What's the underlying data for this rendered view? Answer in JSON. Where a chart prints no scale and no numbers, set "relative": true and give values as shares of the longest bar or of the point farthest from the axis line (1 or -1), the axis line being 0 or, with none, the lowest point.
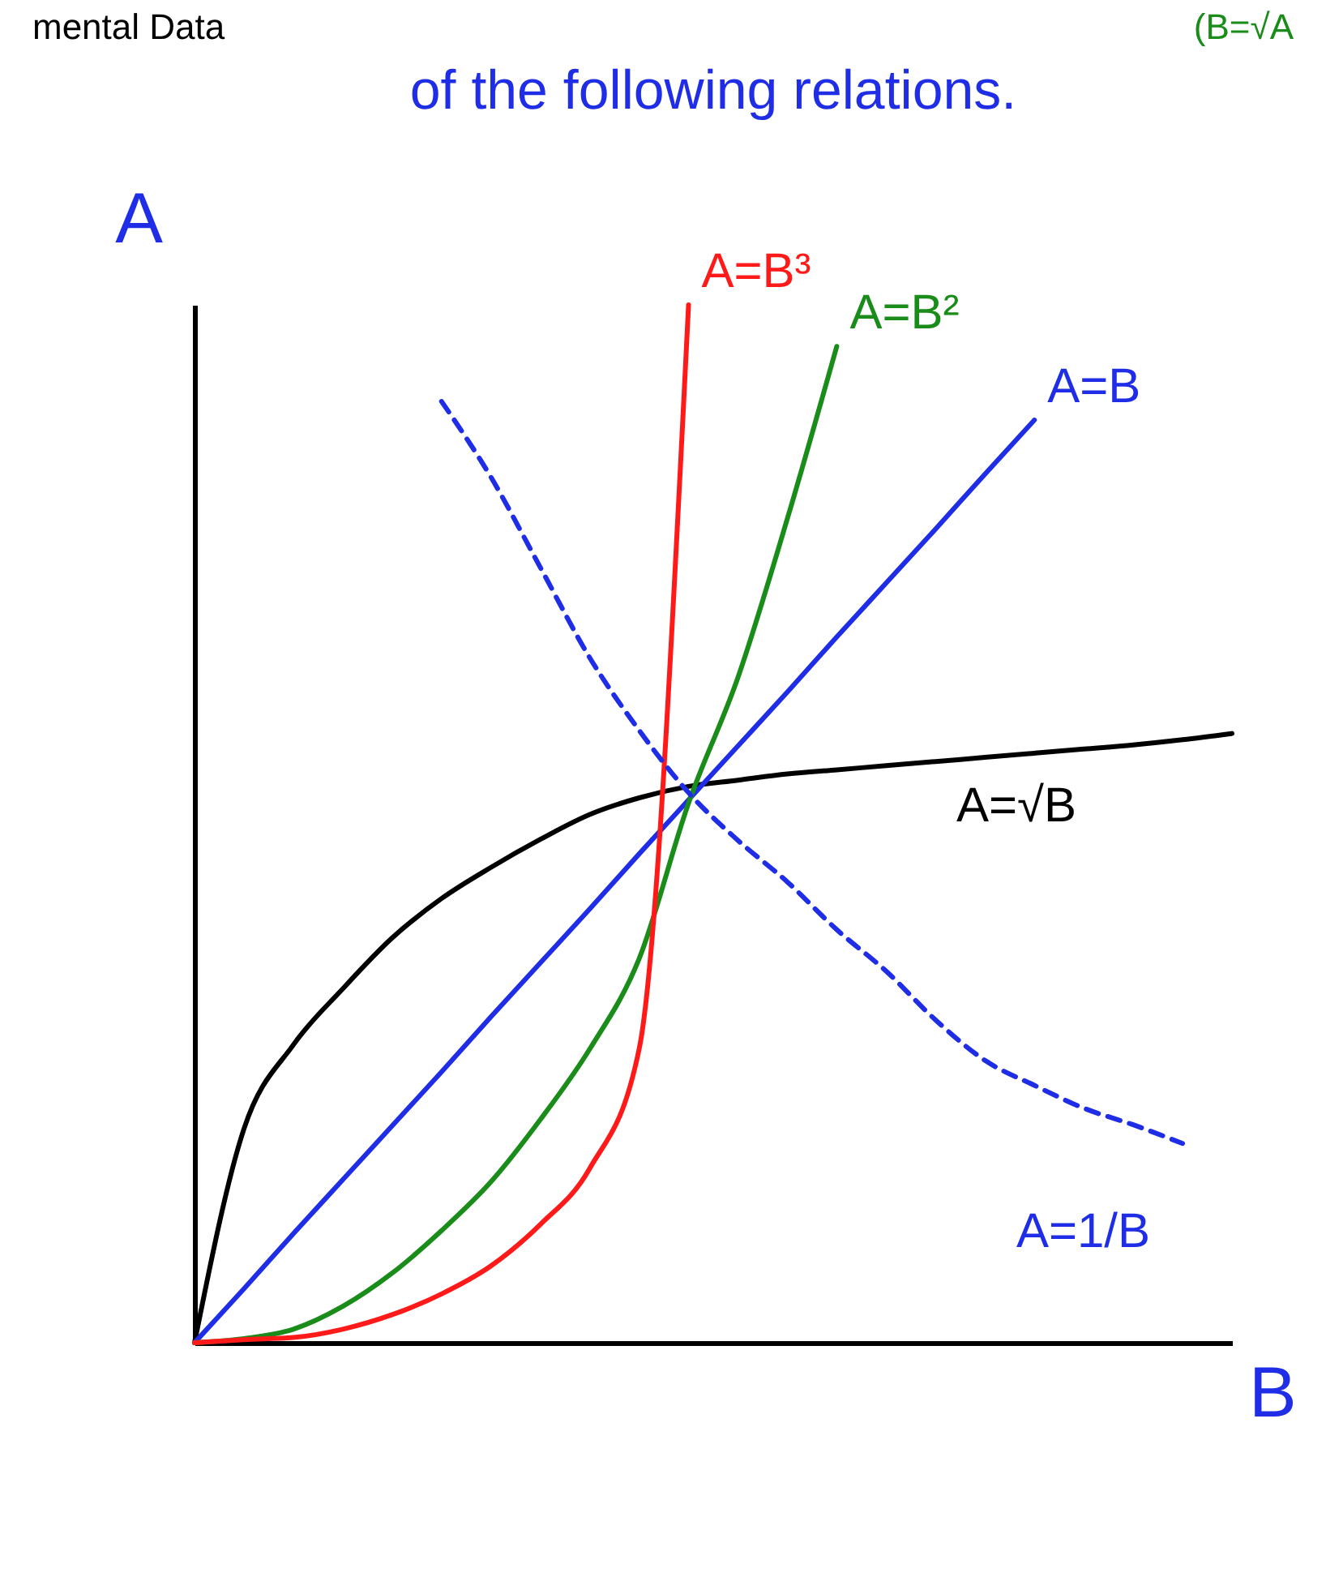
{
  "chart_data": {
    "type": "line",
    "title": "of the following relations.",
    "annotations": [
      "mental Data",
      "(B=√A"
    ],
    "xlabel": "B",
    "ylabel": "A",
    "relative": true,
    "marker": "none",
    "categories": [
      null,
      null,
      null,
      null,
      null,
      null,
      null,
      null,
      null,
      null,
      null,
      null,
      null,
      null,
      null,
      null,
      null,
      null,
      null,
      null,
      null,
      null
    ],
    "series": [
      {
        "name": "A=√B",
        "color": "#000000",
        "line_style": "solid",
        "values": [
          0,
          0.206,
          0.287,
          0.341,
          0.39,
          0.428,
          0.458,
          0.485,
          0.509,
          0.525,
          0.536,
          0.542,
          0.548,
          0.552,
          0.556,
          0.56,
          0.564,
          0.568,
          0.572,
          0.576,
          0.581,
          0.587
        ]
      },
      {
        "name": "A=B",
        "color": "#1f2ee6",
        "line_style": "solid",
        "values": [
          0,
          0.052,
          0.105,
          0.157,
          0.209,
          0.261,
          0.314,
          0.366,
          0.418,
          0.471,
          0.523,
          0.575,
          0.627,
          0.68,
          0.732,
          0.784,
          0.837,
          0.889,
          null,
          null,
          null,
          null
        ]
      },
      {
        "name": "A=B²",
        "color": "#1a8c1a",
        "line_style": "solid",
        "values": [
          0,
          0.004,
          0.013,
          0.035,
          0.067,
          0.108,
          0.155,
          0.215,
          0.283,
          0.37,
          0.52,
          0.641,
          0.794,
          0.96,
          null,
          null,
          null,
          null,
          null,
          null,
          null,
          null
        ]
      },
      {
        "name": "A=B³",
        "color": "#ff1a1a",
        "line_style": "solid",
        "values": [
          0,
          0.003,
          0.005,
          0.013,
          0.027,
          0.047,
          0.074,
          0.114,
          0.168,
          0.283,
          1,
          null,
          null,
          null,
          null,
          null,
          null,
          null,
          null,
          null,
          null,
          null
        ]
      },
      {
        "name": "A=1/B",
        "color": "#1f2ee6",
        "line_style": "dashed",
        "values": [
          null,
          null,
          null,
          null,
          null,
          0.907,
          0.834,
          0.747,
          0.66,
          0.59,
          0.53,
          0.484,
          0.444,
          0.398,
          0.358,
          0.311,
          0.272,
          0.248,
          0.226,
          0.21,
          0.192,
          null
        ]
      }
    ]
  }
}
